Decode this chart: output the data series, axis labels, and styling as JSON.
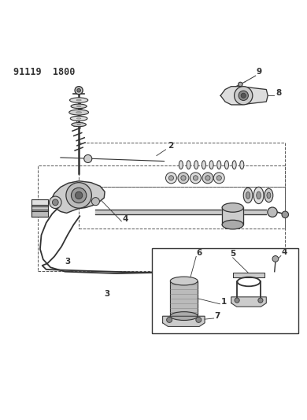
{
  "title_code": "91119  1800",
  "bg_color": "#ffffff",
  "line_color": "#333333",
  "figsize": [
    3.9,
    5.33
  ],
  "dpi": 100
}
